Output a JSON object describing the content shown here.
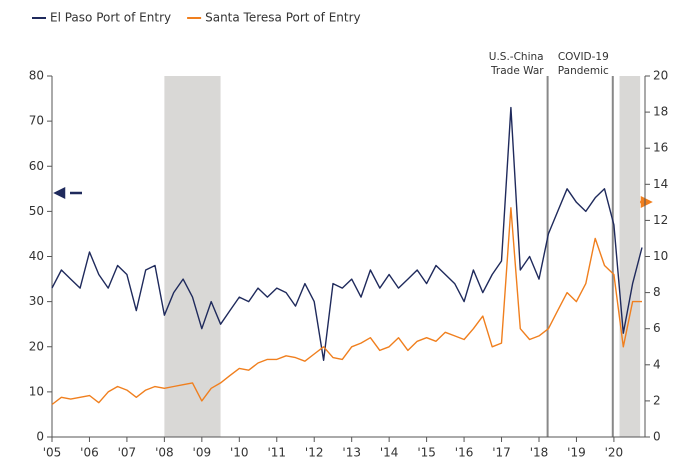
{
  "chart_data": {
    "type": "line",
    "x": [
      2005,
      2005.25,
      2005.5,
      2005.75,
      2006,
      2006.25,
      2006.5,
      2006.75,
      2007,
      2007.25,
      2007.5,
      2007.75,
      2008,
      2008.25,
      2008.5,
      2008.75,
      2009,
      2009.25,
      2009.5,
      2009.75,
      2010,
      2010.25,
      2010.5,
      2010.75,
      2011,
      2011.25,
      2011.5,
      2011.75,
      2012,
      2012.25,
      2012.5,
      2012.75,
      2013,
      2013.25,
      2013.5,
      2013.75,
      2014,
      2014.25,
      2014.5,
      2014.75,
      2015,
      2015.25,
      2015.5,
      2015.75,
      2016,
      2016.25,
      2016.5,
      2016.75,
      2017,
      2017.25,
      2017.5,
      2017.75,
      2018,
      2018.25,
      2018.5,
      2018.75,
      2019,
      2019.25,
      2019.5,
      2019.75,
      2020,
      2020.25,
      2020.5,
      2020.75
    ],
    "series": [
      {
        "name": "El Paso Port of Entry",
        "color": "#1f2a5c",
        "values": [
          33,
          37,
          35,
          33,
          41,
          36,
          33,
          38,
          36,
          28,
          37,
          38,
          27,
          32,
          35,
          31,
          24,
          30,
          25,
          28,
          31,
          30,
          33,
          31,
          33,
          32,
          29,
          34,
          30,
          17,
          34,
          33,
          35,
          31,
          37,
          33,
          36,
          33,
          35,
          37,
          34,
          38,
          36,
          34,
          30,
          37,
          32,
          36,
          39,
          73,
          37,
          40,
          35,
          45,
          50,
          55,
          52,
          50,
          53,
          55,
          47,
          23,
          34,
          42
        ]
      },
      {
        "name": "Santa Teresa Port of Entry",
        "color": "#f07f1e",
        "axis": "y2",
        "values": [
          1.8,
          2.2,
          2.1,
          2.2,
          2.3,
          1.9,
          2.5,
          2.8,
          2.6,
          2.2,
          2.6,
          2.8,
          2.7,
          2.8,
          2.9,
          3.0,
          2.0,
          2.7,
          3.0,
          3.4,
          3.8,
          3.7,
          4.1,
          4.3,
          4.3,
          4.5,
          4.4,
          4.2,
          4.6,
          5.0,
          4.4,
          4.3,
          5.0,
          5.2,
          5.5,
          4.8,
          5.0,
          5.5,
          4.8,
          5.3,
          5.5,
          5.3,
          5.8,
          5.6,
          5.4,
          6.0,
          6.7,
          5.0,
          5.2,
          12.7,
          6.0,
          5.4,
          5.6,
          6.0,
          7.0,
          8.0,
          7.5,
          8.5,
          11.0,
          9.5,
          9.0,
          5.0,
          7.5,
          7.5
        ]
      }
    ],
    "xlim": [
      2005,
      2020.83
    ],
    "xticks": [
      {
        "value": 2005,
        "label": "'05"
      },
      {
        "value": 2006,
        "label": "'06"
      },
      {
        "value": 2007,
        "label": "'07"
      },
      {
        "value": 2008,
        "label": "'08"
      },
      {
        "value": 2009,
        "label": "'09"
      },
      {
        "value": 2010,
        "label": "'10"
      },
      {
        "value": 2011,
        "label": "'11"
      },
      {
        "value": 2012,
        "label": "'12"
      },
      {
        "value": 2013,
        "label": "'13"
      },
      {
        "value": 2014,
        "label": "'14"
      },
      {
        "value": 2015,
        "label": "'15"
      },
      {
        "value": 2016,
        "label": "'16"
      },
      {
        "value": 2017,
        "label": "'17"
      },
      {
        "value": 2018,
        "label": "'18"
      },
      {
        "value": 2019,
        "label": "'19"
      },
      {
        "value": 2020,
        "label": "'20"
      }
    ],
    "ylim": [
      0,
      80
    ],
    "yticks": [
      0,
      10,
      20,
      30,
      40,
      50,
      60,
      70,
      80
    ],
    "y2lim": [
      0,
      20
    ],
    "y2ticks": [
      0,
      2,
      4,
      6,
      8,
      10,
      12,
      14,
      16,
      18,
      20
    ],
    "shaded": [
      [
        2008,
        2009.5
      ],
      [
        2020.15,
        2020.7
      ]
    ],
    "events": [
      {
        "x": 2018.23,
        "label": [
          "U.S.-China",
          "Trade War"
        ]
      },
      {
        "x": 2019.97,
        "label": [
          "COVID-19",
          "Pandemic"
        ]
      }
    ]
  }
}
